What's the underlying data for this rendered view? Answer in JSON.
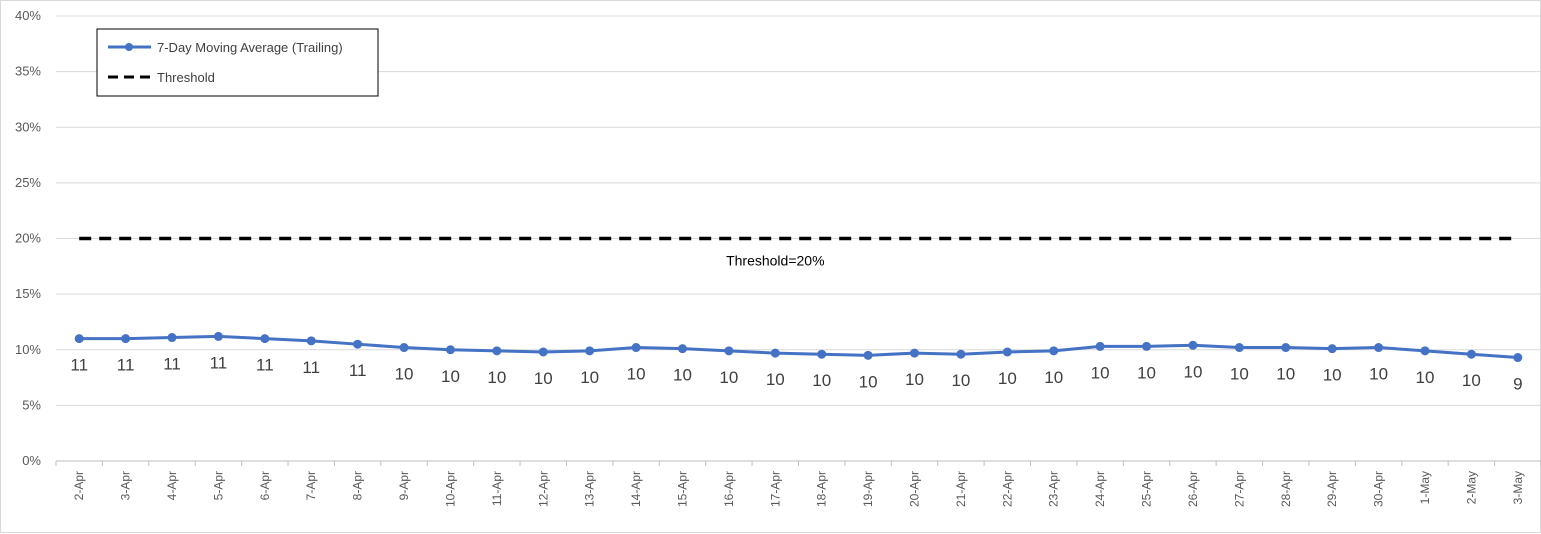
{
  "chart_data": {
    "type": "line",
    "title": "",
    "xlabel": "",
    "ylabel": "",
    "ylim": [
      0,
      0.4
    ],
    "y_tick_labels": [
      "0%",
      "5%",
      "10%",
      "15%",
      "20%",
      "25%",
      "30%",
      "35%",
      "40%"
    ],
    "categories": [
      "2-Apr",
      "3-Apr",
      "4-Apr",
      "5-Apr",
      "6-Apr",
      "7-Apr",
      "8-Apr",
      "9-Apr",
      "10-Apr",
      "11-Apr",
      "12-Apr",
      "13-Apr",
      "14-Apr",
      "15-Apr",
      "16-Apr",
      "17-Apr",
      "18-Apr",
      "19-Apr",
      "20-Apr",
      "21-Apr",
      "22-Apr",
      "23-Apr",
      "24-Apr",
      "25-Apr",
      "26-Apr",
      "27-Apr",
      "28-Apr",
      "29-Apr",
      "30-Apr",
      "1-May",
      "2-May",
      "3-May"
    ],
    "series": [
      {
        "name": "7-Day Moving Average (Trailing)",
        "color": "#4472c4",
        "marker": "circle",
        "values": [
          0.11,
          0.11,
          0.111,
          0.112,
          0.11,
          0.108,
          0.105,
          0.102,
          0.1,
          0.099,
          0.098,
          0.099,
          0.102,
          0.101,
          0.099,
          0.097,
          0.096,
          0.095,
          0.097,
          0.096,
          0.098,
          0.099,
          0.103,
          0.103,
          0.104,
          0.102,
          0.102,
          0.101,
          0.102,
          0.099,
          0.096,
          0.093
        ],
        "data_labels": [
          "11",
          "11",
          "11",
          "11",
          "11",
          "11",
          "11",
          "10",
          "10",
          "10",
          "10",
          "10",
          "10",
          "10",
          "10",
          "10",
          "10",
          "10",
          "10",
          "10",
          "10",
          "10",
          "10",
          "10",
          "10",
          "10",
          "10",
          "10",
          "10",
          "10",
          "10",
          "9"
        ]
      },
      {
        "name": "Threshold",
        "color": "#000000",
        "dash": "dashed",
        "values": [
          0.2,
          0.2,
          0.2,
          0.2,
          0.2,
          0.2,
          0.2,
          0.2,
          0.2,
          0.2,
          0.2,
          0.2,
          0.2,
          0.2,
          0.2,
          0.2,
          0.2,
          0.2,
          0.2,
          0.2,
          0.2,
          0.2,
          0.2,
          0.2,
          0.2,
          0.2,
          0.2,
          0.2,
          0.2,
          0.2,
          0.2,
          0.2
        ]
      }
    ],
    "annotations": [
      {
        "text": "Threshold=20%",
        "x": "17-Apr",
        "y": 0.2,
        "position": "below"
      }
    ],
    "grid": true,
    "gridline_color": "#d9d9d9",
    "legend_position": "top-left"
  }
}
